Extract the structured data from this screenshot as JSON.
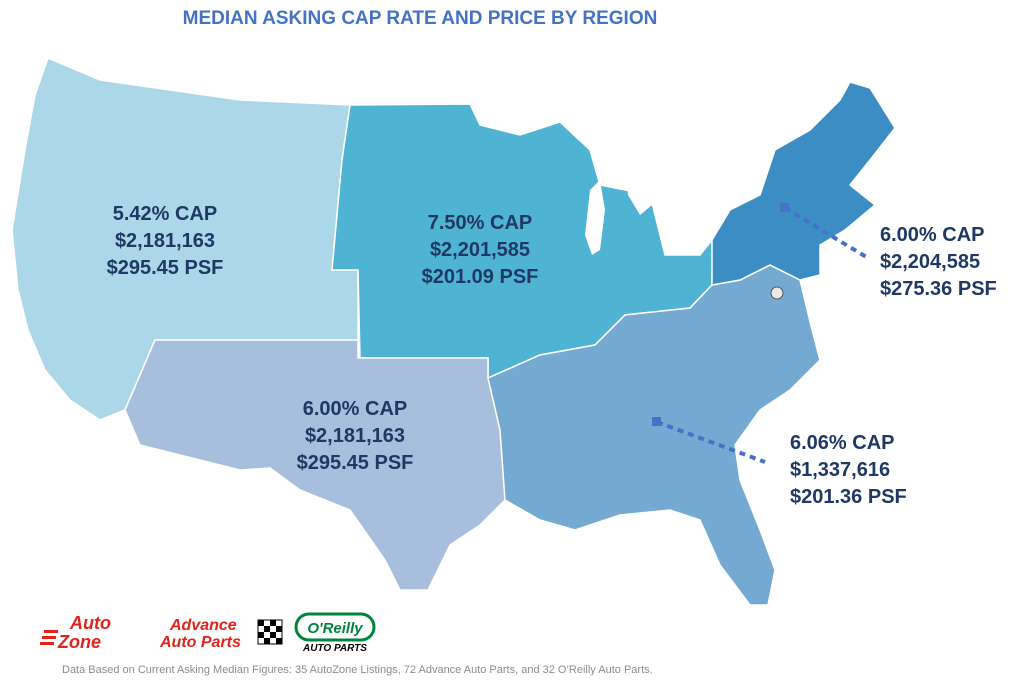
{
  "title": "MEDIAN ASKING CAP RATE AND PRICE BY REGION",
  "regions": {
    "west": {
      "cap": "5.42% CAP",
      "price": "$2,181,163",
      "psf": "$295.45 PSF",
      "color": "#abd7e8"
    },
    "midwest": {
      "cap": "7.50% CAP",
      "price": "$2,201,585",
      "psf": "$201.09 PSF",
      "color": "#4fb3d3"
    },
    "southwest": {
      "cap": "6.00% CAP",
      "price": "$2,181,163",
      "psf": "$295.45 PSF",
      "color": "#a7bedd"
    },
    "northeast": {
      "cap": "6.00% CAP",
      "price": "$2,204,585",
      "psf": "$275.36 PSF",
      "color": "#3b8dc4"
    },
    "southeast": {
      "cap": "6.06% CAP",
      "price": "$1,337,616",
      "psf": "$201.36 PSF",
      "color": "#74a9d1"
    }
  },
  "label_color": "#1f3864",
  "leader_color": "#4472c4",
  "logos": {
    "autozone": {
      "line1": "Auto",
      "line2": "Zone"
    },
    "advance": {
      "line1": "Advance",
      "line2": "Auto Parts"
    },
    "oreilly": {
      "line1": "O'Reilly",
      "line2": "AUTO PARTS"
    }
  },
  "footnote": "Data Based on Current Asking Median Figures:  35 AutoZone Listings, 72 Advance Auto Parts, and 32 O’Reilly Auto Parts."
}
